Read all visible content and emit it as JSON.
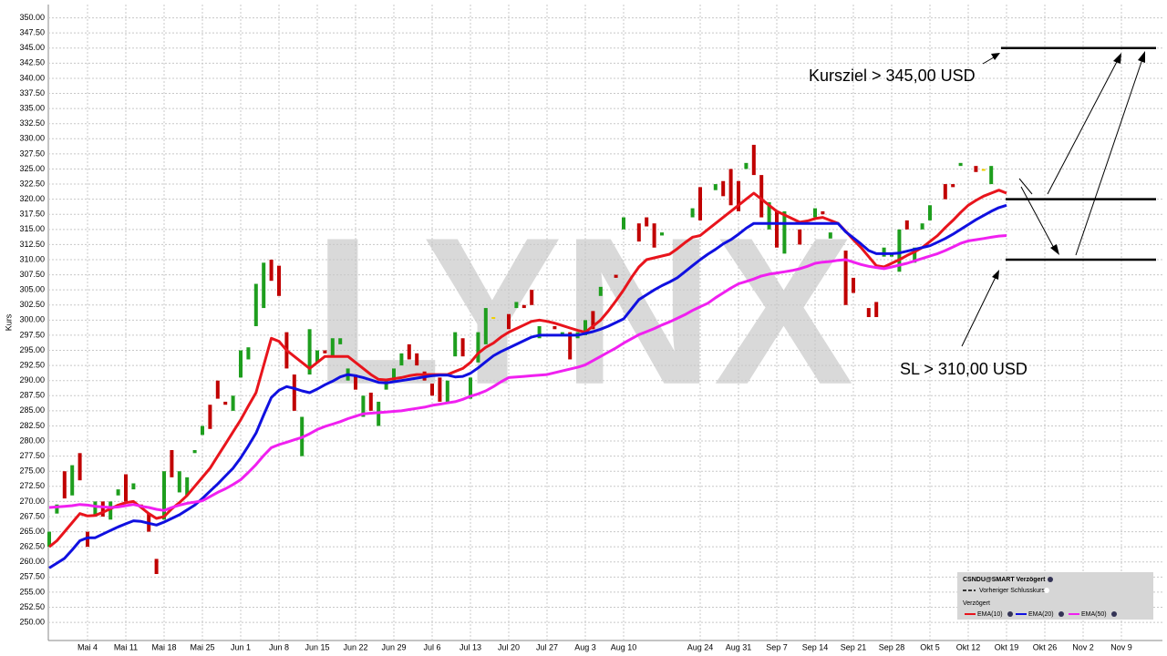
{
  "chart_data": {
    "type": "ohlc",
    "y_label": "Kurs",
    "watermark": "LYNX",
    "annotations": [
      "Kursziel > 345,00 USD",
      "SL > 310,00 USD"
    ],
    "levels": [
      345,
      320,
      310
    ],
    "legend_title": "CSNDU@SMART Verzögert",
    "legend_prev_close": "Vorheriger Schlusskurs",
    "legend_section": "Verzögert",
    "grid": true,
    "ylim": [
      247,
      352.2
    ],
    "yticks": [
      {
        "value": 250,
        "label": "250.00"
      },
      {
        "value": 252.5,
        "label": "252.50"
      },
      {
        "value": 255,
        "label": "255.00"
      },
      {
        "value": 257.5,
        "label": "257.50"
      },
      {
        "value": 260,
        "label": "260.00"
      },
      {
        "value": 262.5,
        "label": "262.50"
      },
      {
        "value": 265,
        "label": "265.00"
      },
      {
        "value": 267.5,
        "label": "267.50"
      },
      {
        "value": 270,
        "label": "270.00"
      },
      {
        "value": 272.5,
        "label": "272.50"
      },
      {
        "value": 275,
        "label": "275.00"
      },
      {
        "value": 277.5,
        "label": "277.50"
      },
      {
        "value": 280,
        "label": "280.00"
      },
      {
        "value": 282.5,
        "label": "282.50"
      },
      {
        "value": 285,
        "label": "285.00"
      },
      {
        "value": 287.5,
        "label": "287.50"
      },
      {
        "value": 290,
        "label": "290.00"
      },
      {
        "value": 292.5,
        "label": "292.50"
      },
      {
        "value": 295,
        "label": "295.00"
      },
      {
        "value": 297.5,
        "label": "297.50"
      },
      {
        "value": 300,
        "label": "300.00"
      },
      {
        "value": 302.5,
        "label": "302.50"
      },
      {
        "value": 305,
        "label": "305.00"
      },
      {
        "value": 307.5,
        "label": "307.50"
      },
      {
        "value": 310,
        "label": "310.00"
      },
      {
        "value": 312.5,
        "label": "312.50"
      },
      {
        "value": 315,
        "label": "315.00"
      },
      {
        "value": 317.5,
        "label": "317.50"
      },
      {
        "value": 320,
        "label": "320.00"
      },
      {
        "value": 322.5,
        "label": "322.50"
      },
      {
        "value": 325,
        "label": "325.00"
      },
      {
        "value": 327.5,
        "label": "327.50"
      },
      {
        "value": 330,
        "label": "330.00"
      },
      {
        "value": 332.5,
        "label": "332.50"
      },
      {
        "value": 335,
        "label": "335.00"
      },
      {
        "value": 337.5,
        "label": "337.50"
      },
      {
        "value": 340,
        "label": "340.00"
      },
      {
        "value": 342.5,
        "label": "342.50"
      },
      {
        "value": 345,
        "label": "345.00"
      },
      {
        "value": 347.5,
        "label": "347.50"
      },
      {
        "value": 350,
        "label": "350.00"
      }
    ],
    "categories": [
      null,
      null,
      null,
      null,
      null,
      "Mai 4",
      null,
      null,
      null,
      null,
      "Mai 11",
      null,
      null,
      null,
      null,
      "Mai 18",
      null,
      null,
      null,
      null,
      "Mai 25",
      null,
      null,
      null,
      null,
      "Jun 1",
      null,
      null,
      null,
      null,
      "Jun 8",
      null,
      null,
      null,
      null,
      "Jun 15",
      null,
      null,
      null,
      null,
      "Jun 22",
      null,
      null,
      null,
      null,
      "Jun 29",
      null,
      null,
      null,
      null,
      "Jul 6",
      null,
      null,
      null,
      null,
      "Jul 13",
      null,
      null,
      null,
      null,
      "Jul 20",
      null,
      null,
      null,
      null,
      "Jul 27",
      null,
      null,
      null,
      null,
      "Aug 3",
      null,
      null,
      null,
      null,
      "Aug 10",
      null,
      null,
      null,
      null,
      null,
      null,
      null,
      null,
      null,
      "Aug 24",
      null,
      null,
      null,
      null,
      "Aug 31",
      null,
      null,
      null,
      null,
      "Sep 7",
      null,
      null,
      null,
      null,
      "Sep 14",
      null,
      null,
      null,
      null,
      "Sep 21",
      null,
      null,
      null,
      null,
      "Sep 28",
      null,
      null,
      null,
      null,
      "Okt 5",
      null,
      null,
      null,
      null,
      "Okt 12",
      null,
      null,
      null,
      null,
      "Okt 19",
      null,
      null,
      null,
      null,
      "Okt 26",
      null,
      null,
      null,
      null,
      "Nov 2",
      null,
      null,
      null,
      null,
      "Nov 9",
      null
    ],
    "bars": {
      "up_color": "#1e9e1e",
      "down_color": "#c00000",
      "flat_color": "#f0d000",
      "open": [
        262.5,
        268,
        275,
        271,
        278,
        265,
        267.5,
        270,
        267,
        271,
        274.5,
        272,
        269.5,
        268,
        260.5,
        267,
        278.5,
        271.5,
        271,
        278,
        281,
        286,
        290,
        286.5,
        285,
        290.5,
        293.5,
        299,
        302,
        310,
        309,
        298,
        291,
        277.5,
        291,
        293,
        295,
        294,
        296,
        290,
        291,
        284,
        288,
        282.5,
        288.5,
        290,
        292.5,
        296,
        294.5,
        291.5,
        289.5,
        290.5,
        286.5,
        294,
        297,
        287,
        293,
        296,
        300.5,
        null,
        301,
        302,
        302.5,
        305,
        297,
        null,
        299,
        297.5,
        298,
        297,
        297.5,
        301.5,
        304,
        null,
        307.5,
        315,
        null,
        316,
        317,
        316,
        314,
        null,
        null,
        null,
        317,
        322,
        null,
        321.5,
        323,
        325,
        323,
        325,
        329,
        324,
        315,
        318,
        311,
        null,
        315,
        null,
        317,
        318,
        313.5,
        null,
        311.5,
        307,
        null,
        302,
        303,
        310.5,
        310.5,
        308,
        316.5,
        309.5,
        315,
        316.5,
        null,
        322.5,
        322.5,
        325.5,
        null,
        325.5,
        325,
        322.5,
        null,
        null,
        null,
        null,
        null,
        null,
        null,
        null,
        null,
        null,
        null,
        null,
        null,
        null,
        null,
        null,
        null,
        null
      ],
      "close": [
        265,
        269.5,
        270.5,
        276,
        273.5,
        262.5,
        270,
        267.5,
        270,
        272,
        270,
        273,
        269,
        265,
        258,
        275,
        274,
        275,
        274,
        278.5,
        282.5,
        282,
        287,
        286,
        287.5,
        295,
        295.5,
        306,
        309.5,
        306.5,
        304,
        292,
        285,
        284,
        298.5,
        295,
        294.5,
        297,
        297,
        292,
        288.5,
        287.5,
        285,
        286.5,
        290,
        292,
        294.5,
        293.5,
        292.5,
        290,
        287.5,
        286.5,
        290,
        298,
        294,
        290.5,
        298,
        302,
        300.5,
        null,
        298.5,
        303,
        302,
        302.5,
        299,
        null,
        298.5,
        298,
        293.5,
        298,
        300,
        298.5,
        305.5,
        null,
        307,
        317,
        null,
        313,
        315.5,
        312,
        314.5,
        null,
        null,
        null,
        318.5,
        316.5,
        null,
        322.5,
        320.5,
        319,
        318,
        326,
        324,
        317,
        319.5,
        312,
        318,
        null,
        312.5,
        null,
        318.5,
        317.5,
        314.5,
        null,
        302.5,
        304.5,
        null,
        300.5,
        300.5,
        312,
        311,
        315,
        315,
        312,
        316,
        319,
        null,
        320,
        322,
        326,
        null,
        324.5,
        325,
        325.5,
        null,
        null,
        null,
        null,
        null,
        null,
        null,
        null,
        null,
        null,
        null,
        null,
        null,
        null,
        null,
        null,
        null,
        null
      ]
    },
    "series": [
      {
        "name": "EMA(10)",
        "color": "#e8141c",
        "values": [
          262.5,
          263.5,
          265,
          266.5,
          268,
          267.6,
          267.7,
          268.2,
          268.8,
          269.4,
          269.8,
          270,
          269,
          268,
          267.2,
          267.5,
          268.8,
          269.8,
          271,
          272.5,
          274,
          275.5,
          277.5,
          279.5,
          281.5,
          283.5,
          285.8,
          288,
          292.5,
          297,
          296.5,
          295,
          294,
          293,
          292,
          293,
          294,
          294,
          294,
          294,
          293,
          292,
          291,
          290.2,
          290.1,
          290.3,
          290.5,
          290.8,
          291,
          291,
          291,
          291,
          291,
          291.5,
          292,
          293,
          294.5,
          295.5,
          296.2,
          297.2,
          298,
          298.6,
          299.2,
          299.8,
          300,
          299.8,
          299.5,
          299.1,
          298.7,
          298.3,
          298,
          299,
          300,
          301.5,
          303.2,
          305,
          307,
          308.8,
          310,
          310.3,
          310.6,
          310.9,
          311.8,
          312.8,
          313.7,
          314,
          315,
          316,
          317,
          318,
          319,
          320,
          321,
          320,
          319,
          318,
          317.4,
          316.8,
          316.2,
          316.4,
          316.8,
          317,
          316.5,
          316,
          314.7,
          313.3,
          312,
          310.5,
          309,
          308.8,
          309.4,
          310,
          310.7,
          311.3,
          312,
          313,
          314,
          315.3,
          316.5,
          317.8,
          319,
          319.8,
          320.5,
          321,
          321.5,
          321,
          null,
          null,
          null,
          null,
          null,
          null,
          null,
          null,
          null,
          null,
          null,
          null,
          null,
          null,
          null,
          null
        ]
      },
      {
        "name": "EMA(20)",
        "color": "#1010e0",
        "values": [
          259,
          259.8,
          260.6,
          262,
          263.5,
          264,
          264,
          264.6,
          265.2,
          265.8,
          266.3,
          266.8,
          266.7,
          266.4,
          266.1,
          266.6,
          267.2,
          267.8,
          268.6,
          269.4,
          270.5,
          271.7,
          272.9,
          274.2,
          275.5,
          277.2,
          279.2,
          281.3,
          284.3,
          287.2,
          288.4,
          289,
          288.7,
          288.3,
          288,
          288.6,
          289.3,
          289.9,
          290.6,
          291,
          290.8,
          290.5,
          290.1,
          289.7,
          289.6,
          289.8,
          290,
          290.2,
          290.4,
          290.6,
          290.8,
          290.9,
          290.9,
          290.6,
          290.7,
          291.2,
          292.1,
          293.1,
          294.1,
          294.8,
          295.4,
          296,
          296.6,
          297.2,
          297.5,
          297.5,
          297.5,
          297.5,
          297.5,
          297.5,
          297.8,
          298.1,
          298.5,
          299,
          299.6,
          300.2,
          301.8,
          303.4,
          304.2,
          305,
          305.7,
          306.3,
          307,
          308,
          309,
          310,
          310.9,
          311.7,
          312.6,
          313.3,
          314.2,
          315.2,
          316,
          316,
          316,
          316,
          316,
          316,
          316,
          316,
          316,
          316,
          316,
          316,
          314.6,
          313.6,
          312.6,
          311.5,
          311,
          311,
          311,
          311.1,
          311.4,
          311.7,
          312,
          312.3,
          312.9,
          313.5,
          314.2,
          315,
          315.8,
          316.6,
          317.3,
          318,
          318.6,
          319,
          null,
          null,
          null,
          null,
          null,
          null,
          null,
          null,
          null,
          null,
          null,
          null,
          null,
          null,
          null,
          null
        ]
      },
      {
        "name": "EMA(50)",
        "color": "#f020f0",
        "values": [
          269,
          269.1,
          269.2,
          269.3,
          269.5,
          269.4,
          269.2,
          269.1,
          269,
          269.1,
          269.3,
          269.5,
          269.2,
          269,
          268.7,
          268.5,
          269,
          269.4,
          269.7,
          269.9,
          270.1,
          270.8,
          271.5,
          272.1,
          272.8,
          273.6,
          274.8,
          276.1,
          277.6,
          278.9,
          279.4,
          279.8,
          280.2,
          280.6,
          281.2,
          281.9,
          282.4,
          282.8,
          283.2,
          283.7,
          284.1,
          284.5,
          284.6,
          284.7,
          284.8,
          284.9,
          285,
          285.2,
          285.4,
          285.6,
          285.9,
          286.1,
          286.3,
          286.5,
          286.9,
          287.4,
          287.8,
          288.3,
          289,
          289.8,
          290.5,
          290.6,
          290.7,
          290.8,
          290.9,
          291,
          291.3,
          291.6,
          291.9,
          292.2,
          292.6,
          293.3,
          294,
          294.7,
          295.4,
          296.2,
          296.9,
          297.6,
          298.1,
          298.6,
          299.2,
          299.7,
          300.3,
          300.9,
          301.6,
          302.2,
          302.8,
          303.7,
          304.5,
          305.3,
          306,
          306.4,
          306.8,
          307.3,
          307.6,
          307.8,
          308,
          308.2,
          308.5,
          308.9,
          309.4,
          309.6,
          309.7,
          309.9,
          310,
          309.6,
          309.2,
          308.9,
          308.7,
          308.5,
          308.8,
          309.1,
          309.4,
          309.8,
          310.2,
          310.6,
          311,
          311.5,
          312.1,
          312.7,
          313.1,
          313.3,
          313.5,
          313.7,
          313.9,
          314,
          null,
          null,
          null,
          null,
          null,
          null,
          null,
          null,
          null,
          null,
          null,
          null,
          null,
          null,
          null,
          null
        ]
      }
    ]
  }
}
